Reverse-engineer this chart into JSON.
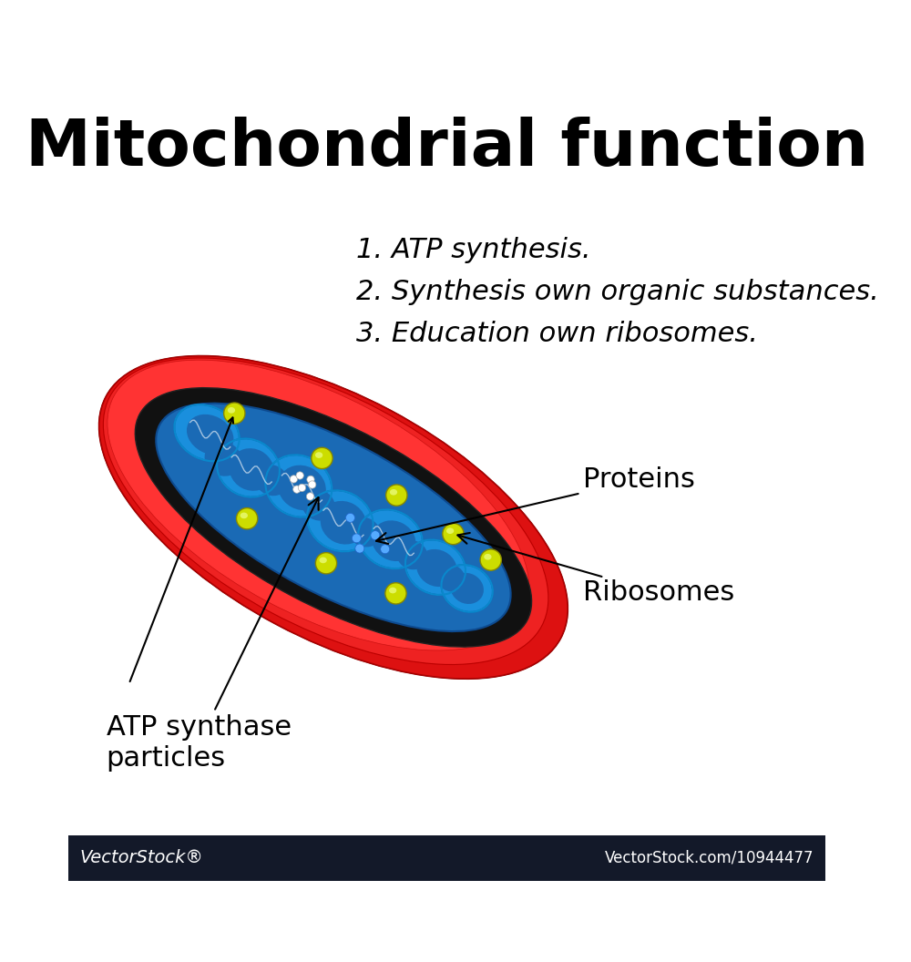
{
  "title": "Mitochondrial function",
  "title_fontsize": 52,
  "title_fontweight": "bold",
  "functions": [
    "1. ATP synthesis.",
    "2. Synthesis own organic substances.",
    "3. Education own ribosomes."
  ],
  "functions_fontsize": 22,
  "labels": {
    "proteins": "Proteins",
    "ribosomes": "Ribosomes",
    "atp": "ATP synthase\nparticles"
  },
  "label_fontsize": 22,
  "bg_color": "#ffffff",
  "footer_bg": "#131929",
  "footer_text_left": "VectorStock®",
  "footer_text_right": "VectorStock.com/10944477",
  "footer_fontsize": 16,
  "outer_membrane_color_main": "#cc1111",
  "outer_membrane_color_dark": "#8b0000",
  "outer_membrane_color_light": "#ff4444",
  "inner_space_color": "#111111",
  "matrix_color": "#1a6ab5",
  "cristae_color": "#1a8fcc",
  "ribosome_color": "#ccdd00",
  "ribosome_color2": "#aacc00"
}
